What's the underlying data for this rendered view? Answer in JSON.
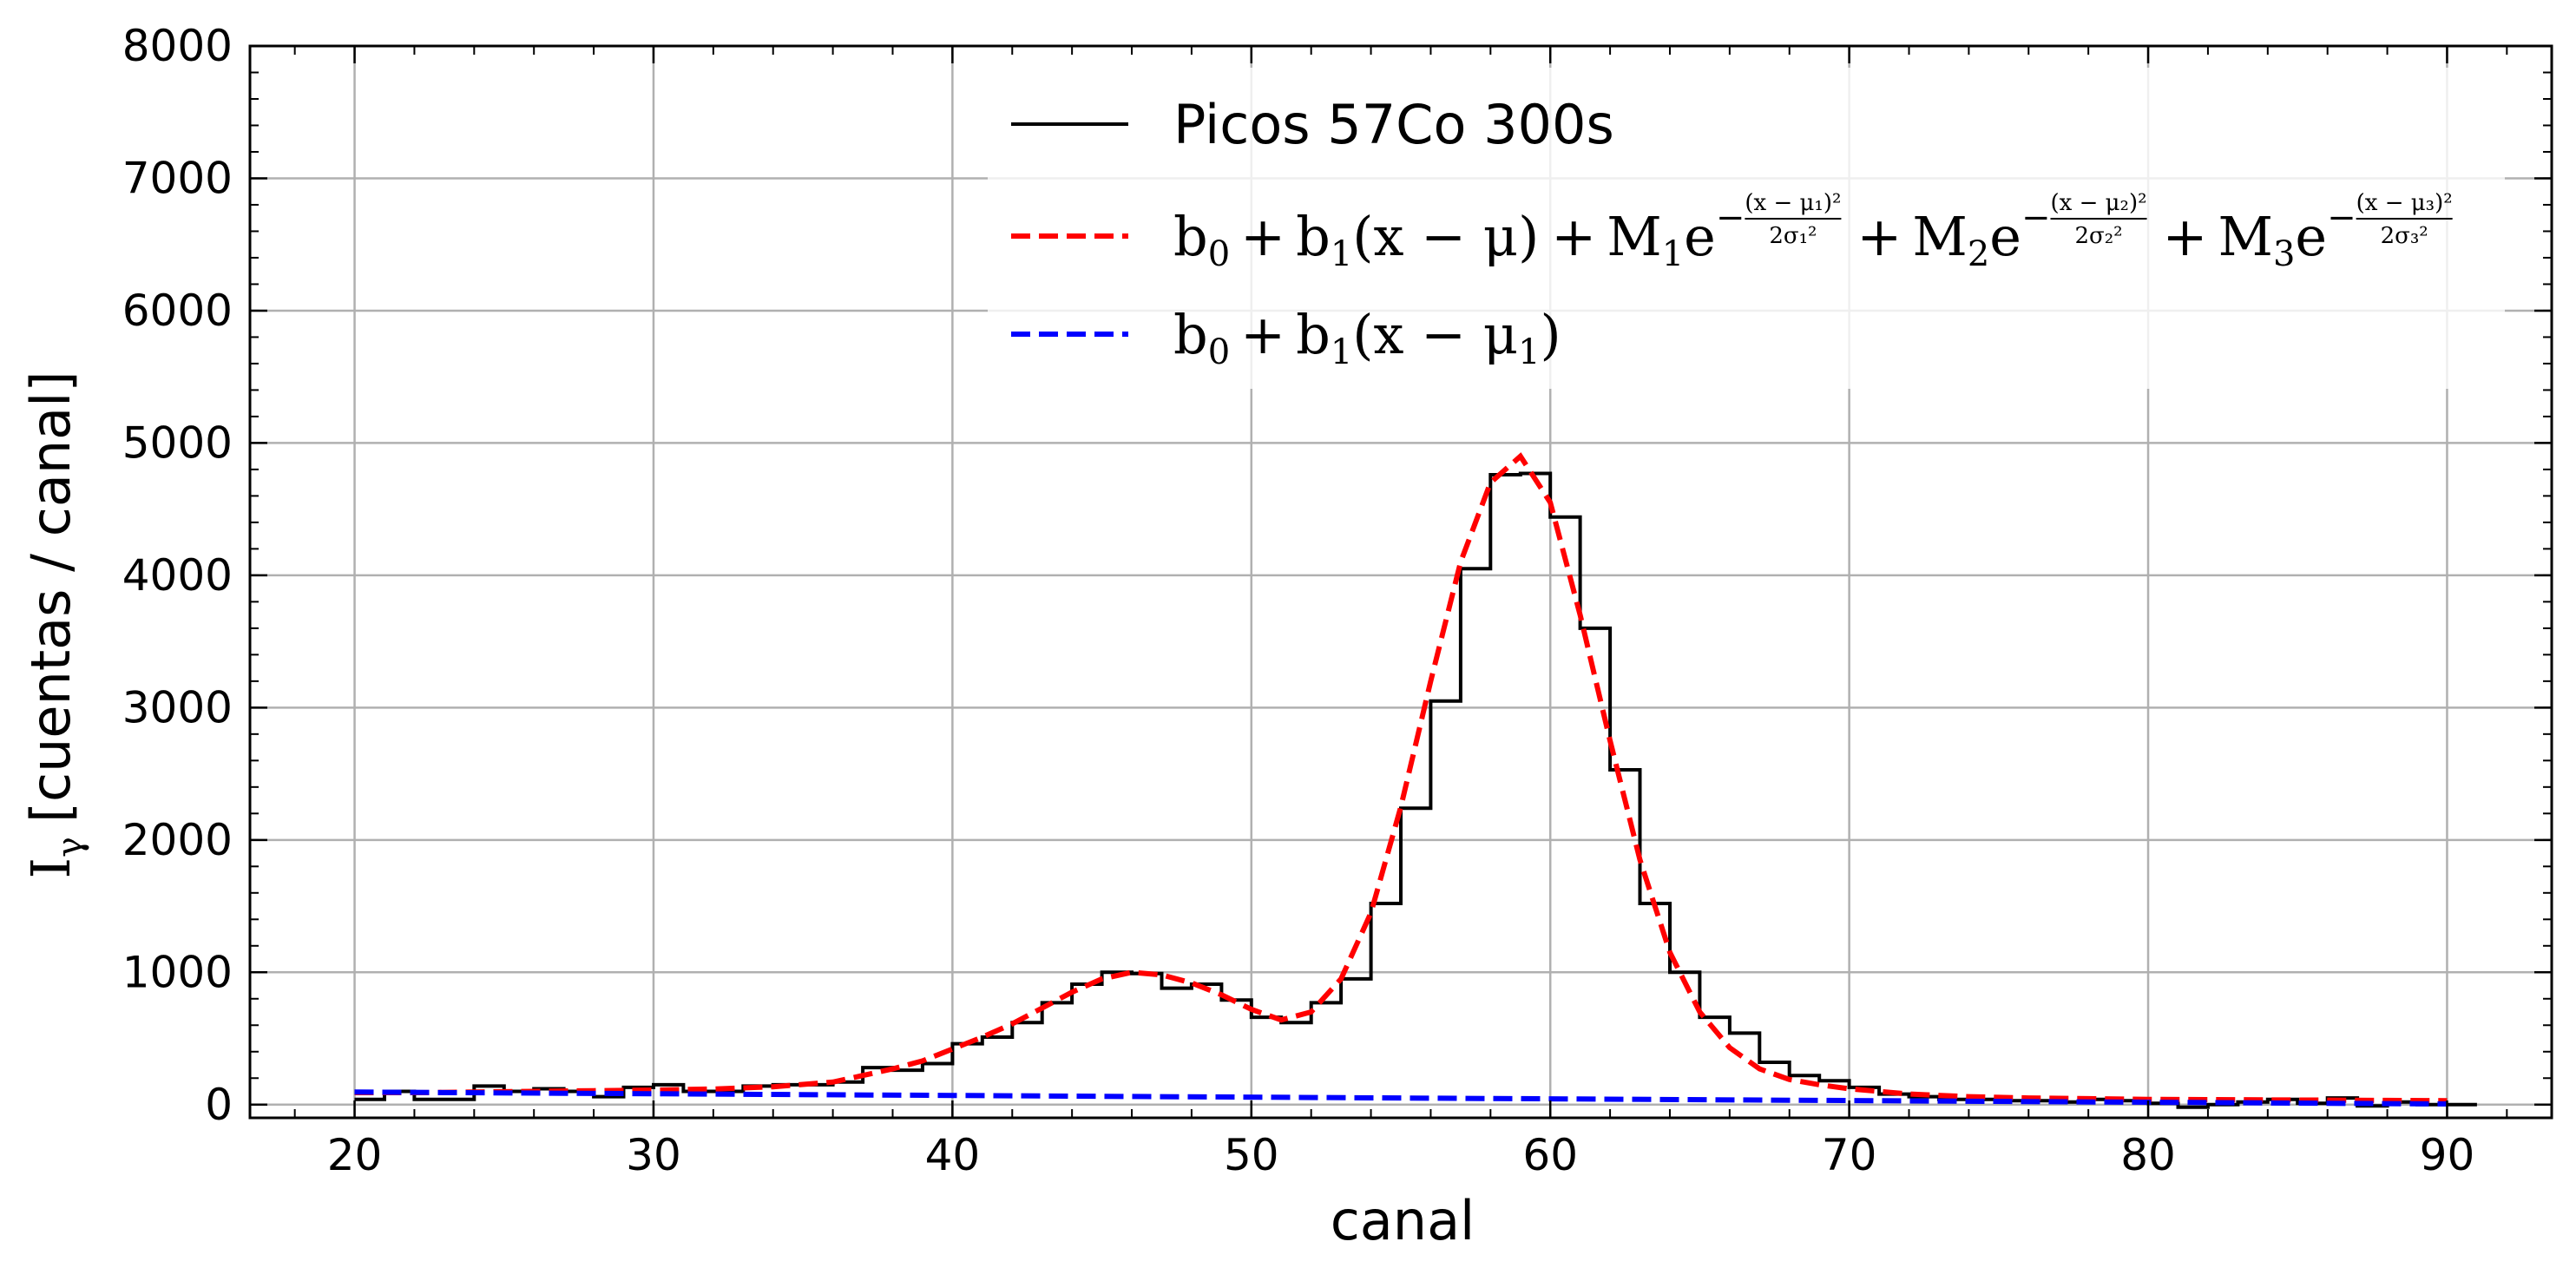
{
  "chart_data": {
    "type": "line",
    "xlabel": "canal",
    "ylabel": "[cuentas / canal]",
    "ylabel_symbol": "I",
    "ylabel_subscript": "γ",
    "xlim": [
      16.5,
      93.5
    ],
    "ylim": [
      -100,
      8000
    ],
    "xticks": [
      20,
      30,
      40,
      50,
      60,
      70,
      80,
      90
    ],
    "yticks": [
      0,
      1000,
      2000,
      3000,
      4000,
      5000,
      6000,
      7000,
      8000
    ],
    "grid": true,
    "legend_position": "top-right",
    "series": [
      {
        "name": "Picos 57Co 300s",
        "style": "step",
        "color": "#000000",
        "x": [
          20,
          21,
          22,
          23,
          24,
          25,
          26,
          27,
          28,
          29,
          30,
          31,
          32,
          33,
          34,
          35,
          36,
          37,
          38,
          39,
          40,
          41,
          42,
          43,
          44,
          45,
          46,
          47,
          48,
          49,
          50,
          51,
          52,
          53,
          54,
          55,
          56,
          57,
          58,
          59,
          60,
          61,
          62,
          63,
          64,
          65,
          66,
          67,
          68,
          69,
          70,
          71,
          72,
          73,
          74,
          75,
          76,
          77,
          78,
          79,
          80,
          81,
          82,
          83,
          84,
          85,
          86,
          87,
          88,
          89,
          90
        ],
        "y": [
          40,
          100,
          40,
          40,
          140,
          100,
          120,
          100,
          60,
          130,
          150,
          100,
          100,
          140,
          150,
          150,
          170,
          280,
          260,
          310,
          460,
          510,
          620,
          770,
          910,
          1000,
          990,
          880,
          910,
          790,
          660,
          620,
          770,
          950,
          1520,
          2240,
          3050,
          4050,
          4760,
          4770,
          4440,
          3600,
          2530,
          1520,
          1000,
          660,
          540,
          320,
          220,
          180,
          130,
          80,
          60,
          40,
          40,
          30,
          30,
          20,
          40,
          30,
          10,
          -20,
          0,
          20,
          40,
          10,
          50,
          -10,
          20,
          0,
          0
        ]
      },
      {
        "name": "b0 + b1(x − μ) + M1 e^(−(x − μ1)²/2σ1²) + M2 e^(−(x − μ2)²/2σ2²) + M3 e^(−(x − μ3)²/2σ3²)",
        "style": "dashed",
        "color": "#ff0000",
        "x": [
          20,
          22,
          24,
          26,
          28,
          30,
          32,
          34,
          36,
          37,
          38,
          39,
          40,
          41,
          42,
          43,
          44,
          45,
          46,
          47,
          48,
          49,
          50,
          51,
          52,
          53,
          54,
          55,
          56,
          57,
          58,
          59,
          60,
          61,
          62,
          63,
          64,
          65,
          66,
          67,
          68,
          69,
          70,
          72,
          74,
          76,
          78,
          80,
          82,
          84,
          86,
          88,
          90
        ],
        "y": [
          90,
          90,
          95,
          100,
          105,
          110,
          118,
          135,
          170,
          220,
          270,
          330,
          420,
          510,
          610,
          730,
          850,
          950,
          1000,
          980,
          920,
          830,
          720,
          640,
          700,
          950,
          1450,
          2250,
          3200,
          4100,
          4700,
          4900,
          4550,
          3700,
          2750,
          1850,
          1150,
          700,
          430,
          270,
          190,
          150,
          120,
          80,
          60,
          50,
          45,
          40,
          38,
          36,
          34,
          32,
          30
        ]
      },
      {
        "name": "b0 + b1(x − μ1)",
        "style": "dashed",
        "color": "#0000ff",
        "x": [
          20,
          90
        ],
        "y": [
          95,
          5
        ]
      }
    ],
    "legend": {
      "entries": [
        {
          "text": "Picos 57Co 300s",
          "color": "#000000",
          "dashed": false
        },
        {
          "color": "#ff0000",
          "dashed": true
        },
        {
          "color": "#0000ff",
          "dashed": true
        }
      ],
      "formula_parts": {
        "b": "b",
        "sub0": "0",
        "sub1": "1",
        "sub2": "2",
        "sub3": "3",
        "plus": "+",
        "x_minus_mu": "(x − μ)",
        "x_minus_mu1": "(x − μ",
        "close": ")",
        "M": "M",
        "e": "e",
        "neg": "−",
        "num1": "(x − μ₁)²",
        "num2": "(x − μ₂)²",
        "num3": "(x − μ₃)²",
        "den1": "2σ₁²",
        "den2": "2σ₂²",
        "den3": "2σ₃²"
      }
    }
  }
}
